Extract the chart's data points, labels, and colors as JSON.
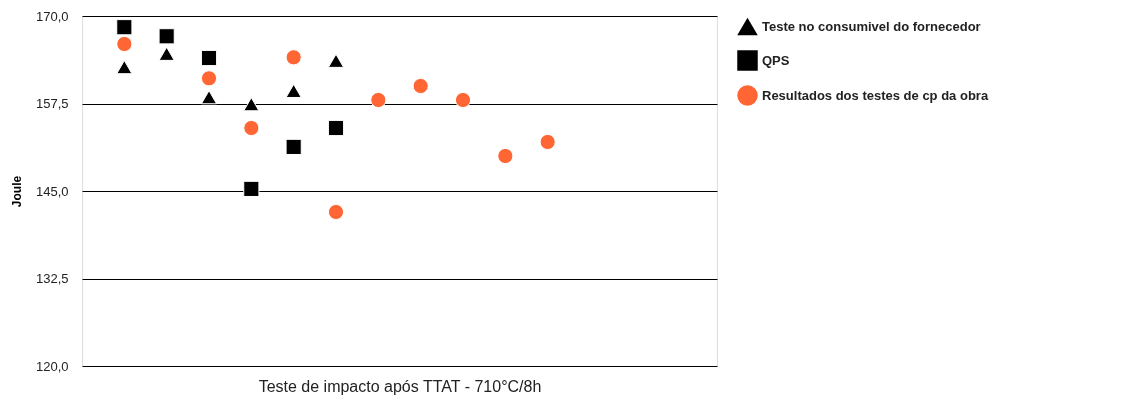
{
  "chart_data": {
    "type": "scatter",
    "xlabel": "Teste de impacto após TTAT - 710°C/8h",
    "ylabel": "Joule",
    "categories": [
      null,
      null,
      null,
      null,
      null,
      null,
      null,
      null,
      null,
      null,
      null,
      null,
      null,
      null
    ],
    "series": [
      {
        "name": "Teste no consumivel do fornecedor",
        "color": "#000000",
        "marker": "triangle",
        "values": [
          162.7,
          164.6,
          158.4,
          157.4,
          159.3,
          163.6,
          null,
          null,
          null,
          null,
          null,
          null,
          null,
          null
        ]
      },
      {
        "name": "QPS",
        "color": "#000000",
        "marker": "square",
        "values": [
          168.4,
          167.1,
          164.0,
          145.3,
          151.3,
          154.0,
          null,
          null,
          null,
          null,
          null,
          null,
          null,
          null
        ]
      },
      {
        "name": "Resultados dos testes de cp da obra",
        "color": "#ff6633",
        "marker": "circle",
        "values": [
          166.0,
          null,
          161.1,
          154.0,
          164.1,
          142.0,
          158.0,
          160.0,
          158.0,
          150.0,
          152.0,
          null,
          null,
          null
        ]
      }
    ],
    "ylim": [
      120,
      170
    ],
    "yticks": [
      {
        "value": 120,
        "label": "120,0"
      },
      {
        "value": 132.5,
        "label": "132,5"
      },
      {
        "value": 145,
        "label": "145,0"
      },
      {
        "value": 157.5,
        "label": "157,5"
      },
      {
        "value": 170,
        "label": "170,0"
      }
    ],
    "grid": "y",
    "legend": "right"
  }
}
